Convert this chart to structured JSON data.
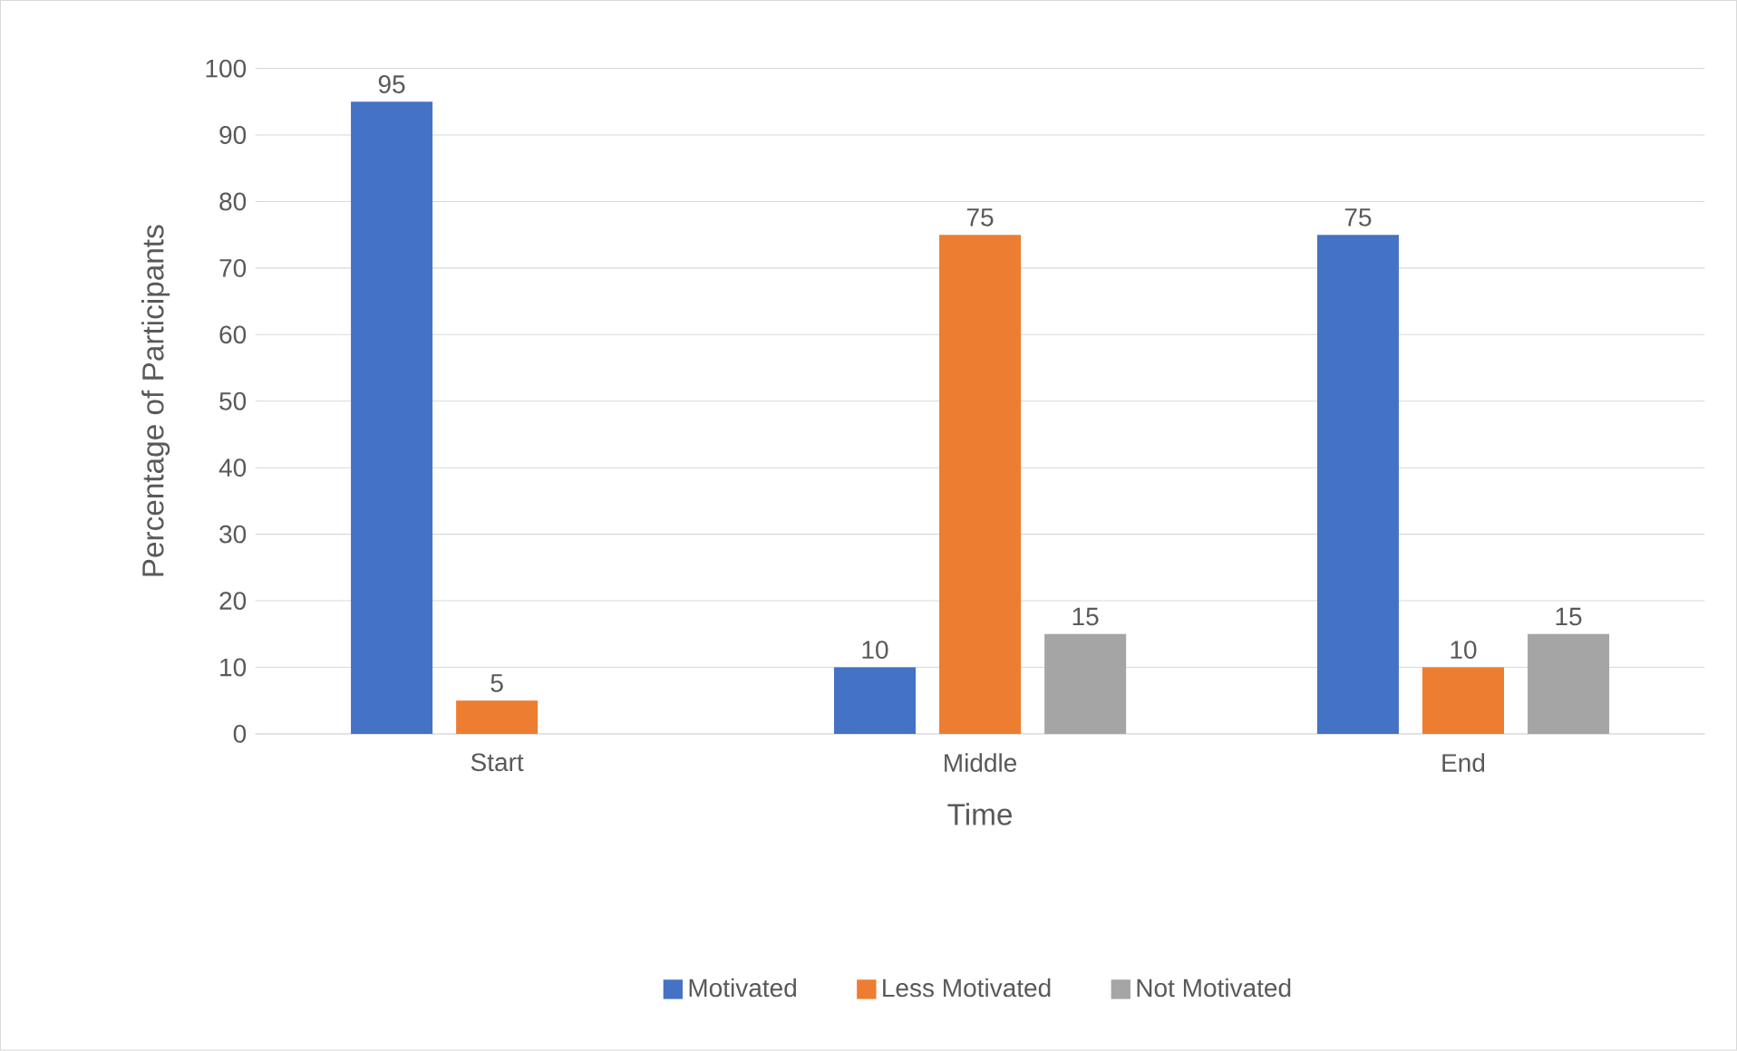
{
  "chart_data": {
    "type": "bar",
    "xlabel": "Time",
    "ylabel": "Percentage of Participants",
    "categories": [
      "Start",
      "Middle",
      "End"
    ],
    "series": [
      {
        "name": "Motivated",
        "color": "#4472c4",
        "values": [
          95,
          10,
          75
        ],
        "value_labels": [
          "95",
          "10",
          "75"
        ]
      },
      {
        "name": "Less Motivated",
        "color": "#ed7d31",
        "values": [
          5,
          75,
          10
        ],
        "value_labels": [
          "5",
          "75",
          "10"
        ]
      },
      {
        "name": "Not Motivated",
        "color": "#a5a5a5",
        "values": [
          null,
          15,
          15
        ],
        "value_labels": [
          null,
          "15",
          "15"
        ]
      }
    ],
    "ylim": [
      0,
      100
    ],
    "yticks": [
      0,
      10,
      20,
      30,
      40,
      50,
      60,
      70,
      80,
      90,
      100
    ],
    "grid": "y",
    "legend": "bottom"
  }
}
